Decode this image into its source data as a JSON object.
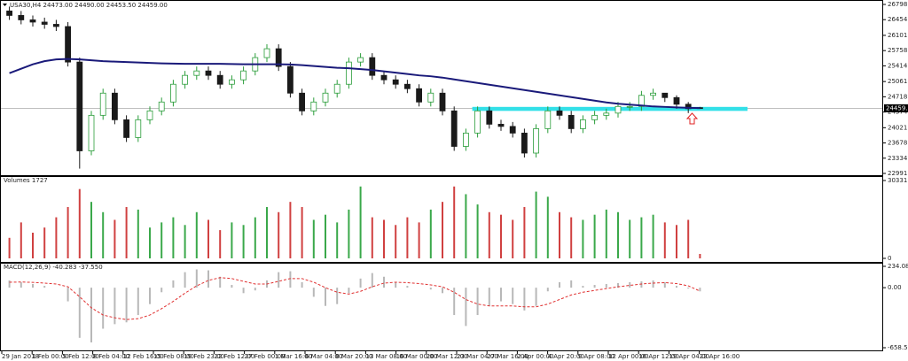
{
  "chart_data": [
    {
      "type": "candlestick",
      "title": "USA30,H4 24473.00 24490.00 24453.50 24459.00",
      "up_color": "#2a9d3a",
      "down_color": "#1a1a1a",
      "open": [
        26650,
        26550,
        26450,
        26400,
        26350,
        26300,
        25500,
        23500,
        24300,
        24800,
        24200,
        23800,
        24200,
        24400,
        24600,
        25000,
        25200,
        25300,
        25200,
        25000,
        25100,
        25300,
        25600,
        25800,
        25400,
        24800,
        24400,
        24600,
        24800,
        25000,
        25500,
        25600,
        25200,
        25100,
        25000,
        24900,
        24600,
        24800,
        24400,
        23600,
        23900,
        24400,
        24100,
        24050,
        23900,
        23450,
        24000,
        24400,
        24300,
        24000,
        24200,
        24300,
        24350,
        24500,
        24500,
        24750,
        24800,
        24700,
        24550,
        24473
      ],
      "high": [
        26750,
        26650,
        26550,
        26500,
        26450,
        26400,
        25600,
        24400,
        24900,
        24900,
        24300,
        24300,
        24500,
        24700,
        25100,
        25300,
        25400,
        25400,
        25300,
        25200,
        25400,
        25700,
        25900,
        25900,
        25500,
        24900,
        24700,
        24900,
        25100,
        25600,
        25700,
        25700,
        25300,
        25200,
        25100,
        25000,
        24900,
        24900,
        24500,
        24000,
        24500,
        24500,
        24200,
        24150,
        24000,
        24100,
        24500,
        24500,
        24400,
        24300,
        24400,
        24450,
        24600,
        24600,
        24850,
        24900,
        24800,
        24750,
        24600,
        24490
      ],
      "low": [
        26450,
        26350,
        26300,
        26250,
        26200,
        25400,
        23100,
        23400,
        24200,
        24100,
        23700,
        23700,
        24100,
        24300,
        24500,
        24900,
        25100,
        25100,
        24900,
        24900,
        25000,
        25200,
        25500,
        25300,
        24700,
        24300,
        24300,
        24500,
        24700,
        24900,
        25400,
        25100,
        25000,
        24900,
        24800,
        24500,
        24500,
        24300,
        23500,
        23500,
        23800,
        24000,
        23950,
        23800,
        23350,
        23350,
        23900,
        24200,
        23900,
        23900,
        24100,
        24200,
        24250,
        24400,
        24400,
        24650,
        24600,
        24450,
        24350,
        24453.5
      ],
      "close": [
        26550,
        26450,
        26400,
        26350,
        26300,
        25500,
        23500,
        24300,
        24800,
        24200,
        23800,
        24200,
        24400,
        24600,
        25000,
        25200,
        25300,
        25200,
        25000,
        25100,
        25300,
        25600,
        25800,
        25400,
        24800,
        24400,
        24600,
        24800,
        25000,
        25500,
        25600,
        25200,
        25100,
        25000,
        24900,
        24600,
        24800,
        24400,
        23600,
        23900,
        24400,
        24100,
        24050,
        23900,
        23450,
        24000,
        24400,
        24300,
        24000,
        24200,
        24300,
        24350,
        24500,
        24500,
        24750,
        24800,
        24700,
        24550,
        24450,
        24459
      ],
      "ma": {
        "color": "#1a1a7a",
        "values": [
          25250,
          25350,
          25450,
          25520,
          25560,
          25570,
          25560,
          25540,
          25520,
          25510,
          25500,
          25490,
          25480,
          25470,
          25465,
          25460,
          25460,
          25460,
          25460,
          25455,
          25450,
          25450,
          25450,
          25450,
          25445,
          25430,
          25410,
          25390,
          25370,
          25360,
          25340,
          25320,
          25290,
          25260,
          25230,
          25200,
          25180,
          25150,
          25110,
          25070,
          25030,
          24990,
          24950,
          24910,
          24870,
          24830,
          24790,
          24750,
          24710,
          24670,
          24630,
          24590,
          24560,
          24540,
          24520,
          24500,
          24490,
          24480,
          24470,
          24465
        ]
      },
      "zone": {
        "low": 24400,
        "high": 24490,
        "color": "#33e0e8"
      },
      "current": {
        "value": 24459,
        "label": "24459.00"
      },
      "ylim": [
        22991.6,
        26798
      ],
      "yticks": [
        {
          "value": 26798,
          "label": "26798.00"
        },
        {
          "value": 26454.8,
          "label": "26454.80"
        },
        {
          "value": 26101.2,
          "label": "26101.20"
        },
        {
          "value": 25758,
          "label": "25758.00"
        },
        {
          "value": 25414.8,
          "label": "25414.80"
        },
        {
          "value": 25061.2,
          "label": "25061.20"
        },
        {
          "value": 24718,
          "label": "24718.00"
        },
        {
          "value": 24374.8,
          "label": "24374.80"
        },
        {
          "value": 24021.2,
          "label": "24021.20"
        },
        {
          "value": 23678,
          "label": "23678.00"
        },
        {
          "value": 23334.8,
          "label": "23334.80"
        },
        {
          "value": 22991.6,
          "label": "22991.60"
        }
      ],
      "xticks": [
        "29 Jan 2018",
        "1 Feb 00:00",
        "5 Feb 12:00",
        "8 Feb 04:00",
        "12 Feb 16:00",
        "15 Feb 08:00",
        "19 Feb 23:00",
        "22 Feb 12:00",
        "27 Feb 00:00",
        "1 Mar 16:00",
        "6 Mar 04:00",
        "8 Mar 20:00",
        "13 Mar 08:00",
        "16 Mar 00:00",
        "20 Mar 12:00",
        "23 Mar 04:00",
        "27 Mar 16:00",
        "2 Apr 00:00",
        "4 Apr 20:00",
        "9 Apr 08:00",
        "12 Apr 00:00",
        "16 Apr 12:00",
        "19 Apr 04:00",
        "23 Apr 16:00"
      ]
    },
    {
      "type": "bar",
      "title": "Volumes 1727",
      "values": [
        8000,
        14000,
        10000,
        12000,
        16000,
        20000,
        27000,
        22000,
        18000,
        15000,
        20000,
        19000,
        12000,
        14000,
        16000,
        13000,
        18000,
        15000,
        11000,
        14000,
        13000,
        16000,
        20000,
        18000,
        22000,
        20000,
        15000,
        17000,
        14000,
        19000,
        28000,
        16000,
        15000,
        13000,
        16000,
        14000,
        19000,
        22000,
        28000,
        25000,
        21000,
        18000,
        17000,
        15000,
        20000,
        26000,
        24000,
        18000,
        16000,
        15000,
        17000,
        19000,
        18000,
        15000,
        16000,
        17000,
        14000,
        13000,
        15000,
        1727
      ],
      "up_color": "#3aa84a",
      "down_color": "#d04040",
      "ylim": [
        0,
        30331
      ],
      "yticks": [
        30331,
        0
      ]
    },
    {
      "type": "macd",
      "title": "MACD(12,26,9) -40.283 -37.550",
      "values": [
        80,
        60,
        40,
        20,
        0,
        -150,
        -550,
        -600,
        -450,
        -400,
        -380,
        -300,
        -180,
        -50,
        80,
        170,
        200,
        190,
        120,
        30,
        -60,
        -30,
        80,
        170,
        180,
        60,
        -100,
        -200,
        -180,
        -60,
        100,
        160,
        120,
        60,
        20,
        0,
        -20,
        -60,
        -300,
        -420,
        -300,
        -200,
        -150,
        -180,
        -250,
        -200,
        -40,
        60,
        80,
        20,
        30,
        40,
        50,
        60,
        70,
        80,
        60,
        20,
        -10,
        -40.283
      ],
      "color": "#b8b8b8",
      "signal": {
        "color": "#e03030",
        "values": [
          60,
          62,
          58,
          50,
          40,
          10,
          -100,
          -220,
          -300,
          -330,
          -350,
          -340,
          -300,
          -230,
          -150,
          -60,
          20,
          80,
          110,
          100,
          70,
          40,
          40,
          70,
          100,
          100,
          60,
          0,
          -50,
          -70,
          -40,
          10,
          50,
          60,
          55,
          45,
          30,
          10,
          -50,
          -130,
          -180,
          -200,
          -200,
          -200,
          -210,
          -210,
          -180,
          -130,
          -80,
          -50,
          -30,
          -10,
          10,
          25,
          40,
          50,
          55,
          45,
          20,
          -37.55
        ]
      },
      "ylim": [
        -658.523,
        234.088
      ],
      "yticks": [
        234.088,
        {
          "value": 0,
          "label": "0.00"
        },
        -658.523
      ]
    }
  ]
}
